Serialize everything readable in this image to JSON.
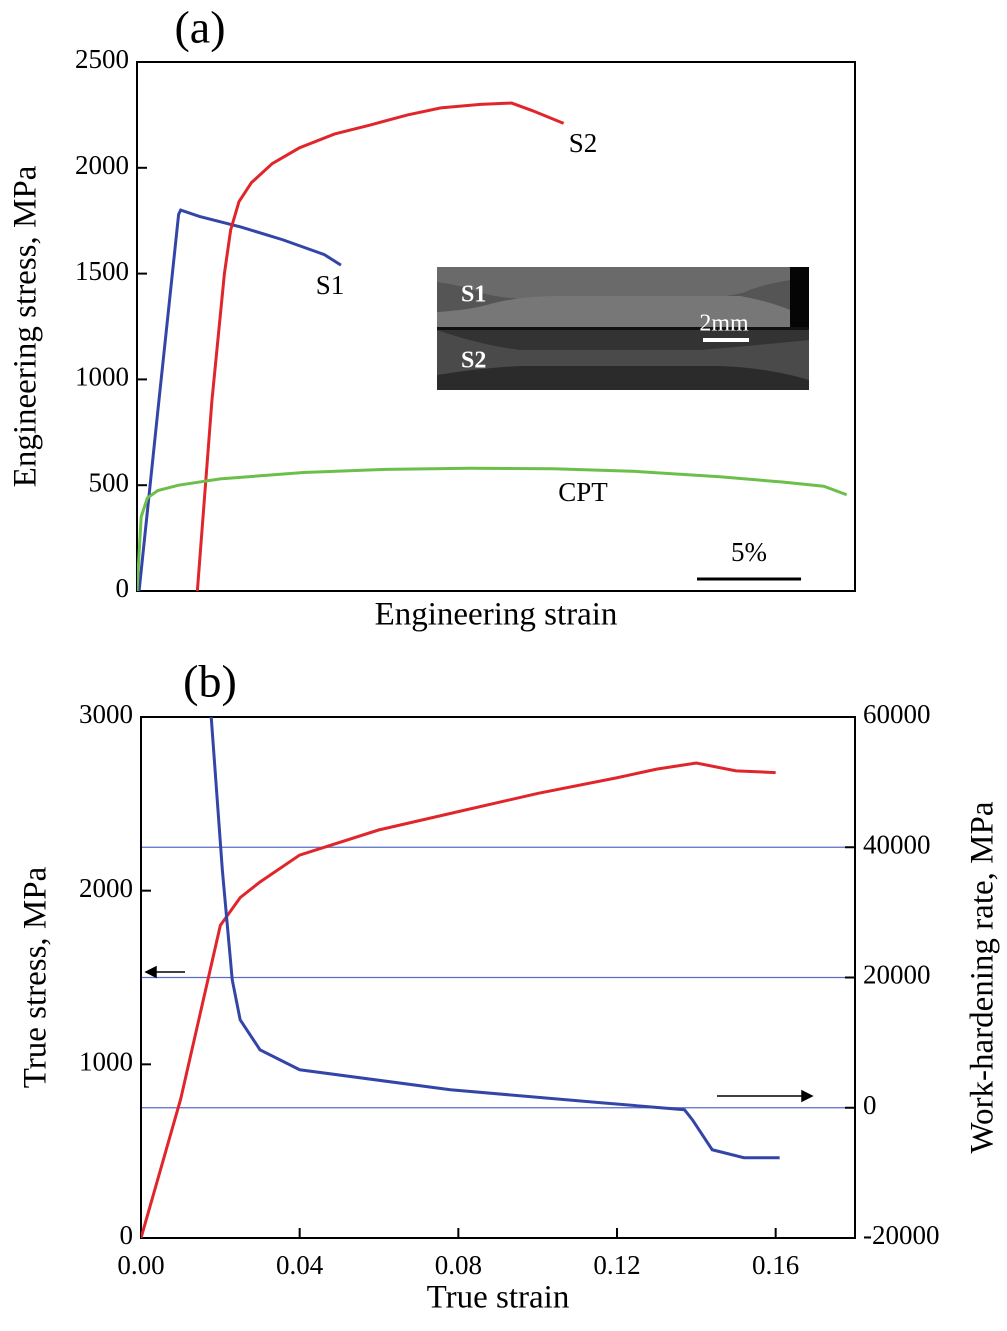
{
  "chart_data": [
    {
      "type": "line",
      "panel_label": "(a)",
      "y_label": "Engineering stress, MPa",
      "x_label": "Engineering strain",
      "xlim": [
        0,
        34.5
      ],
      "ylim": [
        0,
        2500
      ],
      "yticks": [
        0,
        500,
        1000,
        1500,
        2000,
        2500
      ],
      "scale_bar": {
        "value": 5,
        "label": "5%"
      },
      "inset_labels": [
        "S1",
        "S2",
        "2mm"
      ],
      "series": [
        {
          "name": "S1",
          "color": "#3445a8",
          "x": [
            0.1,
            1,
            2.0,
            2.1,
            3,
            5,
            7,
            9,
            9.8
          ],
          "values": [
            0,
            850,
            1780,
            1800,
            1770,
            1720,
            1660,
            1590,
            1540
          ]
        },
        {
          "name": "S2",
          "color": "#e0262b",
          "x": [
            2.9,
            3.6,
            4.2,
            4.5,
            4.9,
            5.5,
            6.5,
            7.8,
            9.5,
            11.2,
            13,
            14.6,
            16.5,
            18,
            19,
            20.5
          ],
          "values": [
            0,
            900,
            1500,
            1706,
            1840,
            1930,
            2020,
            2094,
            2160,
            2202,
            2250,
            2283,
            2300,
            2306,
            2270,
            2210
          ]
        },
        {
          "name": "CPT",
          "color": "#6cbf4a",
          "x": [
            0,
            0.2,
            0.5,
            1,
            2,
            4,
            8,
            12,
            16,
            20,
            24,
            28,
            31,
            33,
            34.1
          ],
          "values": [
            0,
            350,
            440,
            475,
            500,
            530,
            560,
            575,
            580,
            578,
            565,
            540,
            515,
            495,
            455
          ]
        }
      ]
    },
    {
      "type": "line",
      "panel_label": "(b)",
      "y_label": "True stress, MPa",
      "y2_label": "Work-hardening rate, MPa",
      "x_label": "True strain",
      "xlim": [
        0,
        0.18
      ],
      "xticks": [
        {
          "value": 0,
          "label": "0.00"
        },
        0.04,
        0.08,
        0.12,
        0.16
      ],
      "ylim": [
        0,
        3000
      ],
      "yticks": [
        0,
        1000,
        2000,
        3000
      ],
      "y2lim": [
        -20000,
        60000
      ],
      "y2ticks": [
        -20000,
        0,
        20000,
        40000,
        60000
      ],
      "grid_y2": true,
      "grid_color": "#5a6cc8",
      "series": [
        {
          "color": "#e0262b",
          "x": [
            0,
            0.005,
            0.01,
            0.015,
            0.02,
            0.025,
            0.03,
            0.04,
            0.06,
            0.08,
            0.1,
            0.12,
            0.13,
            0.14,
            0.15,
            0.16
          ],
          "values": [
            0,
            400,
            800,
            1300,
            1800,
            1960,
            2050,
            2205,
            2350,
            2455,
            2560,
            2650,
            2700,
            2735,
            2690,
            2680
          ]
        },
        {
          "color": "#3445a8",
          "axis": "y2",
          "x": [
            0.0177,
            0.0205,
            0.023,
            0.025,
            0.03,
            0.04,
            0.078,
            0.116,
            0.137,
            0.139,
            0.144,
            0.152,
            0.161
          ],
          "values": [
            60000,
            36545,
            19650,
            13510,
            8900,
            5835,
            2760,
            770,
            -300,
            -1840,
            -6450,
            -7680,
            -7680
          ]
        }
      ]
    }
  ]
}
